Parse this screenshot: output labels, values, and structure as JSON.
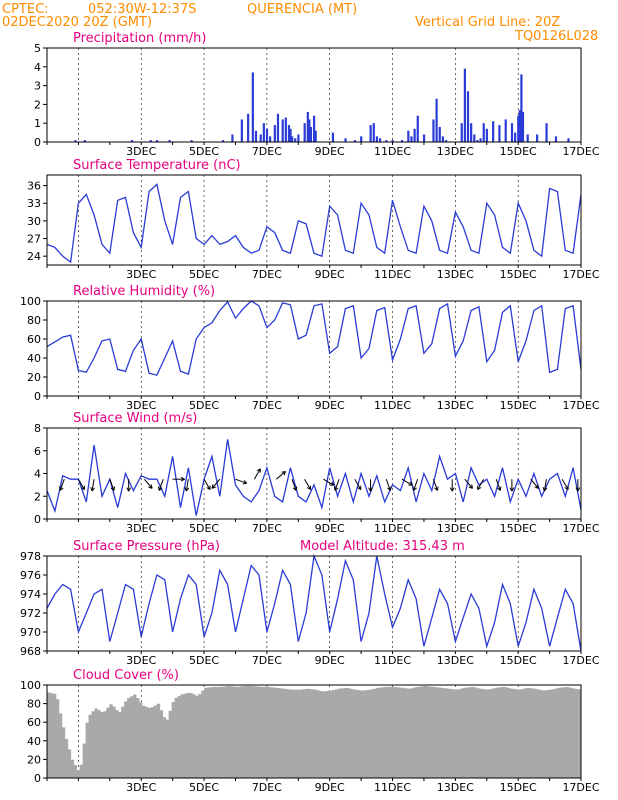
{
  "header": {
    "source": "CPTEC:",
    "location": "052:30W-12:37S",
    "site": "QUERENCIA (MT)",
    "run": "02DEC2020 20Z (GMT)",
    "grid_note": "Vertical Grid Line: 20Z",
    "code": "TQ0126L028"
  },
  "panels": [
    {
      "key": "precip",
      "title": "Precipitation (mm/h)",
      "extra": ""
    },
    {
      "key": "temp",
      "title": "Surface Temperature (nC)",
      "extra": ""
    },
    {
      "key": "rh",
      "title": "Relative Humidity (%)",
      "extra": ""
    },
    {
      "key": "wind",
      "title": "Surface Wind (m/s)",
      "extra": ""
    },
    {
      "key": "press",
      "title": "Surface Pressure (hPa)",
      "extra": "Model Altitude: 315.43 m"
    },
    {
      "key": "cloud",
      "title": "Cloud Cover (%)",
      "extra": ""
    }
  ],
  "x_axis_labels": [
    "3DEC",
    "5DEC",
    "7DEC",
    "9DEC",
    "11DEC",
    "13DEC",
    "15DEC",
    "17DEC"
  ],
  "colors": {
    "header": "#ff8c00",
    "title": "#e6007e",
    "series": "#2a3bd6",
    "cloud": "#a9a9a9"
  },
  "chart_data": [
    {
      "type": "bar",
      "title": "Precipitation (mm/h)",
      "ylim": [
        0,
        5
      ],
      "yticks": [
        0,
        1,
        2,
        3,
        4,
        5
      ],
      "x_unit": "days since 02DEC2020 20Z",
      "x": [
        0.9,
        1.2,
        2.7,
        3.3,
        3.5,
        3.9,
        4.6,
        5.6,
        5.9,
        6.2,
        6.4,
        6.55,
        6.65,
        6.8,
        6.9,
        7.0,
        7.1,
        7.25,
        7.35,
        7.5,
        7.6,
        7.7,
        7.75,
        7.8,
        7.9,
        8.0,
        8.2,
        8.3,
        8.35,
        8.4,
        8.5,
        8.55,
        9.1,
        9.5,
        9.8,
        10.0,
        10.3,
        10.4,
        10.5,
        10.6,
        10.8,
        11.0,
        11.3,
        11.5,
        11.6,
        11.7,
        11.8,
        12.0,
        12.3,
        12.4,
        12.5,
        12.6,
        12.7,
        13.2,
        13.3,
        13.4,
        13.5,
        13.6,
        13.7,
        13.8,
        13.9,
        14.0,
        14.2,
        14.4,
        14.6,
        14.8,
        14.9,
        15.0,
        15.05,
        15.1,
        15.15,
        15.3,
        15.6,
        15.9,
        16.2,
        16.6
      ],
      "values": [
        0.1,
        0.1,
        0.1,
        0.1,
        0.1,
        0.1,
        0.1,
        0.1,
        0.4,
        1.2,
        1.5,
        3.7,
        0.6,
        0.4,
        1.0,
        0.7,
        0.3,
        0.9,
        1.5,
        1.2,
        1.3,
        0.9,
        0.7,
        0.3,
        0.2,
        0.4,
        1.0,
        1.6,
        1.2,
        0.8,
        1.4,
        0.6,
        0.5,
        0.2,
        0.1,
        0.3,
        0.9,
        1.0,
        0.3,
        0.2,
        0.1,
        0.1,
        0.1,
        0.6,
        0.3,
        0.7,
        1.4,
        0.4,
        1.2,
        2.3,
        0.8,
        0.3,
        0.1,
        1.0,
        3.9,
        2.7,
        1.0,
        0.4,
        0.1,
        0.2,
        1.0,
        0.7,
        1.1,
        0.9,
        1.2,
        1.0,
        0.5,
        1.4,
        1.7,
        3.6,
        1.6,
        0.4,
        0.4,
        1.0,
        0.3,
        0.2
      ]
    },
    {
      "type": "line",
      "title": "Surface Temperature (nC)",
      "ylim": [
        22.5,
        37.8
      ],
      "yticks": [
        24,
        27,
        30,
        33,
        36
      ],
      "x": [
        0,
        0.25,
        0.5,
        0.75,
        1,
        1.25,
        1.5,
        1.75,
        2,
        2.25,
        2.5,
        2.75,
        3,
        3.25,
        3.5,
        3.75,
        4,
        4.25,
        4.5,
        4.75,
        5,
        5.25,
        5.5,
        5.75,
        6,
        6.25,
        6.5,
        6.75,
        7,
        7.25,
        7.5,
        7.75,
        8,
        8.25,
        8.5,
        8.75,
        9,
        9.25,
        9.5,
        9.75,
        10,
        10.25,
        10.5,
        10.75,
        11,
        11.25,
        11.5,
        11.75,
        12,
        12.25,
        12.5,
        12.75,
        13,
        13.25,
        13.5,
        13.75,
        14,
        14.25,
        14.5,
        14.75,
        15,
        15.25,
        15.5,
        15.75,
        16,
        16.25,
        16.5,
        16.75,
        17
      ],
      "values": [
        26,
        25.5,
        24,
        23,
        33,
        34.5,
        31,
        26,
        24.5,
        33.5,
        34,
        28,
        25.5,
        35,
        36.2,
        30,
        26,
        34,
        35,
        27,
        26,
        27.5,
        26,
        26.5,
        27.5,
        25.5,
        24.5,
        25,
        29,
        28,
        25,
        24.5,
        30,
        29.5,
        24.5,
        24,
        32.5,
        31,
        25,
        24.5,
        33,
        31,
        25.5,
        24.5,
        33.5,
        29,
        25,
        24.5,
        32.5,
        30,
        25,
        24.5,
        31.5,
        29,
        25,
        24.5,
        33,
        31,
        25.5,
        24.5,
        33,
        30,
        25,
        24,
        35.5,
        35,
        25,
        24.5,
        34.5
      ]
    },
    {
      "type": "line",
      "title": "Relative Humidity (%)",
      "ylim": [
        0,
        100
      ],
      "yticks": [
        0,
        20,
        40,
        60,
        80,
        100
      ],
      "x": [
        0,
        0.25,
        0.5,
        0.75,
        1,
        1.25,
        1.5,
        1.75,
        2,
        2.25,
        2.5,
        2.75,
        3,
        3.25,
        3.5,
        3.75,
        4,
        4.25,
        4.5,
        4.75,
        5,
        5.25,
        5.5,
        5.75,
        6,
        6.25,
        6.5,
        6.75,
        7,
        7.25,
        7.5,
        7.75,
        8,
        8.25,
        8.5,
        8.75,
        9,
        9.25,
        9.5,
        9.75,
        10,
        10.25,
        10.5,
        10.75,
        11,
        11.25,
        11.5,
        11.75,
        12,
        12.25,
        12.5,
        12.75,
        13,
        13.25,
        13.5,
        13.75,
        14,
        14.25,
        14.5,
        14.75,
        15,
        15.25,
        15.5,
        15.75,
        16,
        16.25,
        16.5,
        16.75,
        17
      ],
      "values": [
        52,
        57,
        62,
        64,
        27,
        25,
        40,
        58,
        60,
        28,
        26,
        48,
        60,
        24,
        22,
        40,
        58,
        26,
        23,
        60,
        72,
        77,
        90,
        99,
        82,
        92,
        100,
        95,
        72,
        80,
        98,
        96,
        60,
        64,
        95,
        97,
        45,
        52,
        92,
        95,
        40,
        50,
        90,
        93,
        38,
        60,
        92,
        95,
        45,
        55,
        92,
        97,
        42,
        58,
        90,
        94,
        36,
        48,
        88,
        95,
        36,
        58,
        90,
        95,
        25,
        28,
        92,
        95,
        28
      ]
    },
    {
      "type": "line",
      "title": "Surface Wind (m/s)",
      "ylim": [
        0,
        8
      ],
      "yticks": [
        0,
        2,
        4,
        6,
        8
      ],
      "x": [
        0,
        0.25,
        0.5,
        0.75,
        1,
        1.25,
        1.5,
        1.75,
        2,
        2.25,
        2.5,
        2.75,
        3,
        3.25,
        3.5,
        3.75,
        4,
        4.25,
        4.5,
        4.75,
        5,
        5.25,
        5.5,
        5.75,
        6,
        6.25,
        6.5,
        6.75,
        7,
        7.25,
        7.5,
        7.75,
        8,
        8.25,
        8.5,
        8.75,
        9,
        9.25,
        9.5,
        9.75,
        10,
        10.25,
        10.5,
        10.75,
        11,
        11.25,
        11.5,
        11.75,
        12,
        12.25,
        12.5,
        12.75,
        13,
        13.25,
        13.5,
        13.75,
        14,
        14.25,
        14.5,
        14.75,
        15,
        15.25,
        15.5,
        15.75,
        16,
        16.25,
        16.5,
        16.75,
        17
      ],
      "values": [
        2.5,
        0.7,
        3.8,
        3.5,
        3.5,
        1.5,
        6.5,
        2.0,
        3.5,
        1.0,
        4.0,
        2.5,
        3.8,
        3.5,
        3.5,
        2.0,
        5.5,
        1.0,
        4.5,
        0.3,
        3.5,
        5.5,
        2.0,
        7.0,
        3.0,
        2.0,
        1.5,
        2.5,
        4.5,
        2.0,
        1.5,
        4.5,
        2.0,
        1.5,
        3.0,
        1.0,
        4.5,
        2.0,
        4.0,
        1.5,
        4.0,
        2.0,
        3.8,
        1.5,
        3.0,
        2.5,
        4.5,
        1.5,
        4.0,
        2.5,
        5.5,
        3.5,
        4.0,
        1.5,
        4.5,
        3.0,
        3.5,
        2.0,
        4.5,
        1.5,
        3.5,
        2.0,
        4.0,
        2.0,
        3.5,
        4.0,
        2.0,
        4.5,
        0.8
      ],
      "vectors_x": [
        0.55,
        1.0,
        1.5,
        2.0,
        2.6,
        3.1,
        3.7,
        4.0,
        4.5,
        5.0,
        5.5,
        6.0,
        6.6,
        7.3,
        7.8,
        8.2,
        8.8,
        9.3,
        9.8,
        10.3,
        10.8,
        11.3,
        11.8,
        12.3,
        12.9,
        13.3,
        13.9,
        14.3,
        14.8,
        15.4,
        15.9,
        16.4,
        16.9
      ],
      "vectors_angle_deg": [
        250,
        300,
        260,
        290,
        270,
        310,
        250,
        0,
        260,
        300,
        230,
        340,
        60,
        40,
        290,
        300,
        330,
        250,
        300,
        270,
        290,
        330,
        250,
        290,
        270,
        310,
        240,
        290,
        270,
        310,
        260,
        300,
        270
      ]
    },
    {
      "type": "line",
      "title": "Surface Pressure (hPa)",
      "ylim": [
        968,
        978
      ],
      "yticks": [
        968,
        970,
        972,
        974,
        976,
        978
      ],
      "x": [
        0,
        0.25,
        0.5,
        0.75,
        1,
        1.25,
        1.5,
        1.75,
        2,
        2.25,
        2.5,
        2.75,
        3,
        3.25,
        3.5,
        3.75,
        4,
        4.25,
        4.5,
        4.75,
        5,
        5.25,
        5.5,
        5.75,
        6,
        6.25,
        6.5,
        6.75,
        7,
        7.25,
        7.5,
        7.75,
        8,
        8.25,
        8.5,
        8.75,
        9,
        9.25,
        9.5,
        9.75,
        10,
        10.25,
        10.5,
        10.75,
        11,
        11.25,
        11.5,
        11.75,
        12,
        12.25,
        12.5,
        12.75,
        13,
        13.25,
        13.5,
        13.75,
        14,
        14.25,
        14.5,
        14.75,
        15,
        15.25,
        15.5,
        15.75,
        16,
        16.25,
        16.5,
        16.75,
        17
      ],
      "values": [
        972.5,
        974,
        975,
        974.5,
        970,
        972,
        974,
        974.5,
        969,
        972,
        975,
        974.5,
        969.5,
        973,
        976,
        975.5,
        970,
        973.5,
        976,
        975,
        969.5,
        972,
        976.5,
        975,
        970,
        973.5,
        977,
        976,
        970,
        973,
        976.5,
        975,
        969,
        972,
        978,
        976,
        970,
        973.5,
        977.5,
        975.5,
        969,
        972,
        978,
        974,
        970.5,
        972.5,
        975.5,
        973.5,
        968.5,
        971.5,
        974.5,
        973,
        969,
        971.5,
        974,
        972.5,
        968.5,
        971,
        975,
        973,
        968.5,
        971,
        974.5,
        972.5,
        968.5,
        971.5,
        974.5,
        973,
        968
      ]
    },
    {
      "type": "area",
      "title": "Cloud Cover (%)",
      "ylim": [
        0,
        100
      ],
      "yticks": [
        0,
        20,
        40,
        60,
        80,
        100
      ],
      "x": [
        0,
        0.25,
        0.5,
        0.75,
        1,
        1.25,
        1.5,
        1.75,
        2,
        2.25,
        2.5,
        2.75,
        3,
        3.25,
        3.5,
        3.75,
        4,
        4.25,
        4.5,
        4.75,
        5,
        5.25,
        5.5,
        5.75,
        6,
        6.25,
        6.5,
        6.75,
        7,
        7.25,
        7.5,
        7.75,
        8,
        8.25,
        8.5,
        8.75,
        9,
        9.25,
        9.5,
        9.75,
        10,
        10.25,
        10.5,
        10.75,
        11,
        11.25,
        11.5,
        11.75,
        12,
        12.25,
        12.5,
        12.75,
        13,
        13.25,
        13.5,
        13.75,
        14,
        14.25,
        14.5,
        14.75,
        15,
        15.25,
        15.5,
        15.75,
        16,
        16.25,
        16.5,
        16.75,
        17
      ],
      "values": [
        92,
        90,
        50,
        20,
        5,
        65,
        75,
        70,
        80,
        70,
        85,
        90,
        78,
        75,
        80,
        60,
        85,
        90,
        92,
        88,
        97,
        98,
        98,
        99,
        98,
        99,
        99,
        98,
        98,
        97,
        96,
        95,
        95,
        96,
        95,
        93,
        94,
        96,
        97,
        95,
        94,
        95,
        97,
        98,
        98,
        97,
        96,
        98,
        99,
        98,
        97,
        96,
        95,
        97,
        98,
        96,
        95,
        97,
        98,
        96,
        95,
        97,
        96,
        94,
        95,
        97,
        98,
        96,
        95
      ]
    }
  ]
}
